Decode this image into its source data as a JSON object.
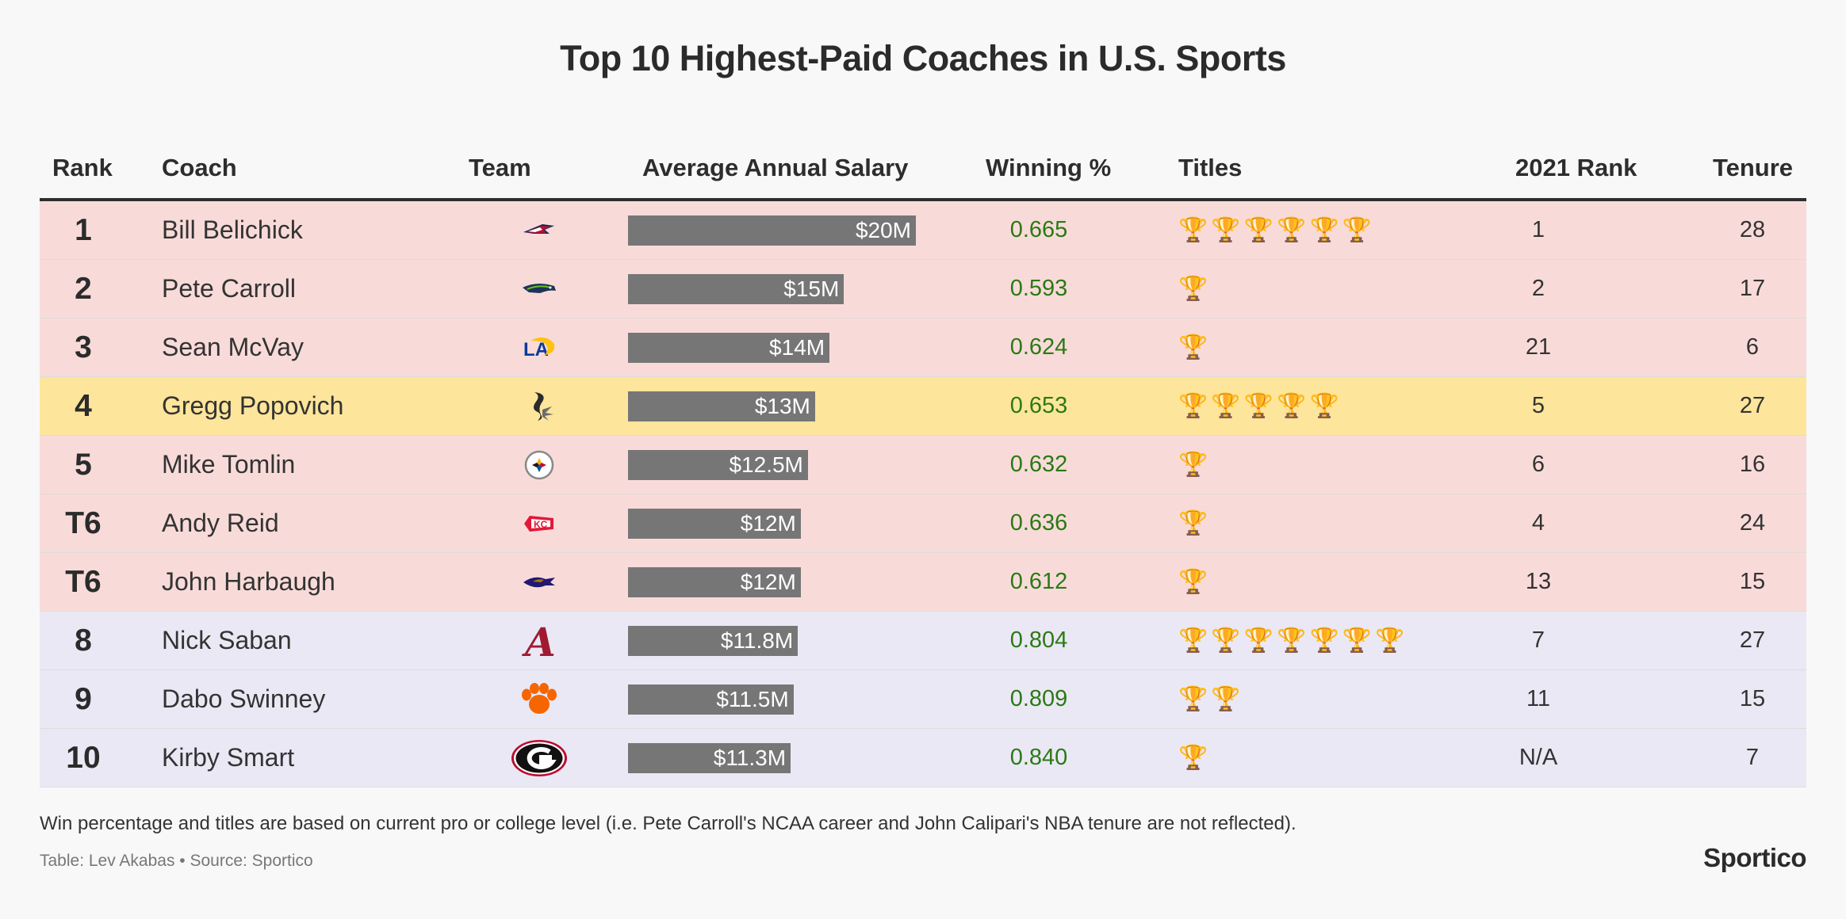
{
  "title": "Top 10 Highest-Paid Coaches in U.S. Sports",
  "headers": {
    "rank": "Rank",
    "coach": "Coach",
    "team": "Team",
    "salary": "Average Annual Salary",
    "winning": "Winning %",
    "titles": "Titles",
    "rank2021": "2021 Rank",
    "tenure": "Tenure"
  },
  "colors": {
    "nfl_row": "#f8dbd9",
    "nba_row": "#fde59b",
    "ncaa_row": "#ebe8f5",
    "bar": "#767676",
    "winning_text": "#2a7a14"
  },
  "chart_data": {
    "type": "table",
    "title": "Top 10 Highest-Paid Coaches in U.S. Sports",
    "salary_unit": "$M",
    "salary_max": 20,
    "rows": [
      {
        "rank": "1",
        "coach": "Bill Belichick",
        "team_logo": "patriots-logo",
        "league": "nfl",
        "salary": 20,
        "salary_label": "$20M",
        "winning": "0.665",
        "titles": 6,
        "rank2021": "1",
        "tenure": "28"
      },
      {
        "rank": "2",
        "coach": "Pete Carroll",
        "team_logo": "seahawks-logo",
        "league": "nfl",
        "salary": 15,
        "salary_label": "$15M",
        "winning": "0.593",
        "titles": 1,
        "rank2021": "2",
        "tenure": "17"
      },
      {
        "rank": "3",
        "coach": "Sean McVay",
        "team_logo": "rams-logo",
        "league": "nfl",
        "salary": 14,
        "salary_label": "$14M",
        "winning": "0.624",
        "titles": 1,
        "rank2021": "21",
        "tenure": "6"
      },
      {
        "rank": "4",
        "coach": "Gregg Popovich",
        "team_logo": "spurs-logo",
        "league": "nba",
        "salary": 13,
        "salary_label": "$13M",
        "winning": "0.653",
        "titles": 5,
        "rank2021": "5",
        "tenure": "27"
      },
      {
        "rank": "5",
        "coach": "Mike Tomlin",
        "team_logo": "steelers-logo",
        "league": "nfl",
        "salary": 12.5,
        "salary_label": "$12.5M",
        "winning": "0.632",
        "titles": 1,
        "rank2021": "6",
        "tenure": "16"
      },
      {
        "rank": "T6",
        "coach": "Andy Reid",
        "team_logo": "chiefs-logo",
        "league": "nfl",
        "salary": 12,
        "salary_label": "$12M",
        "winning": "0.636",
        "titles": 1,
        "rank2021": "4",
        "tenure": "24"
      },
      {
        "rank": "T6",
        "coach": "John Harbaugh",
        "team_logo": "ravens-logo",
        "league": "nfl",
        "salary": 12,
        "salary_label": "$12M",
        "winning": "0.612",
        "titles": 1,
        "rank2021": "13",
        "tenure": "15"
      },
      {
        "rank": "8",
        "coach": "Nick Saban",
        "team_logo": "alabama-logo",
        "league": "ncaa",
        "salary": 11.8,
        "salary_label": "$11.8M",
        "winning": "0.804",
        "titles": 7,
        "rank2021": "7",
        "tenure": "27"
      },
      {
        "rank": "9",
        "coach": "Dabo Swinney",
        "team_logo": "clemson-logo",
        "league": "ncaa",
        "salary": 11.5,
        "salary_label": "$11.5M",
        "winning": "0.809",
        "titles": 2,
        "rank2021": "11",
        "tenure": "15"
      },
      {
        "rank": "10",
        "coach": "Kirby Smart",
        "team_logo": "georgia-logo",
        "league": "ncaa",
        "salary": 11.3,
        "salary_label": "$11.3M",
        "winning": "0.840",
        "titles": 1,
        "rank2021": "N/A",
        "tenure": "7"
      }
    ]
  },
  "footnote": "Win percentage and titles are based on current pro or college level (i.e. Pete Carroll's NCAA career and John Calipari's NBA tenure are not reflected).",
  "credit": "Table: Lev Akabas • Source: Sportico",
  "brand": "Sportico"
}
